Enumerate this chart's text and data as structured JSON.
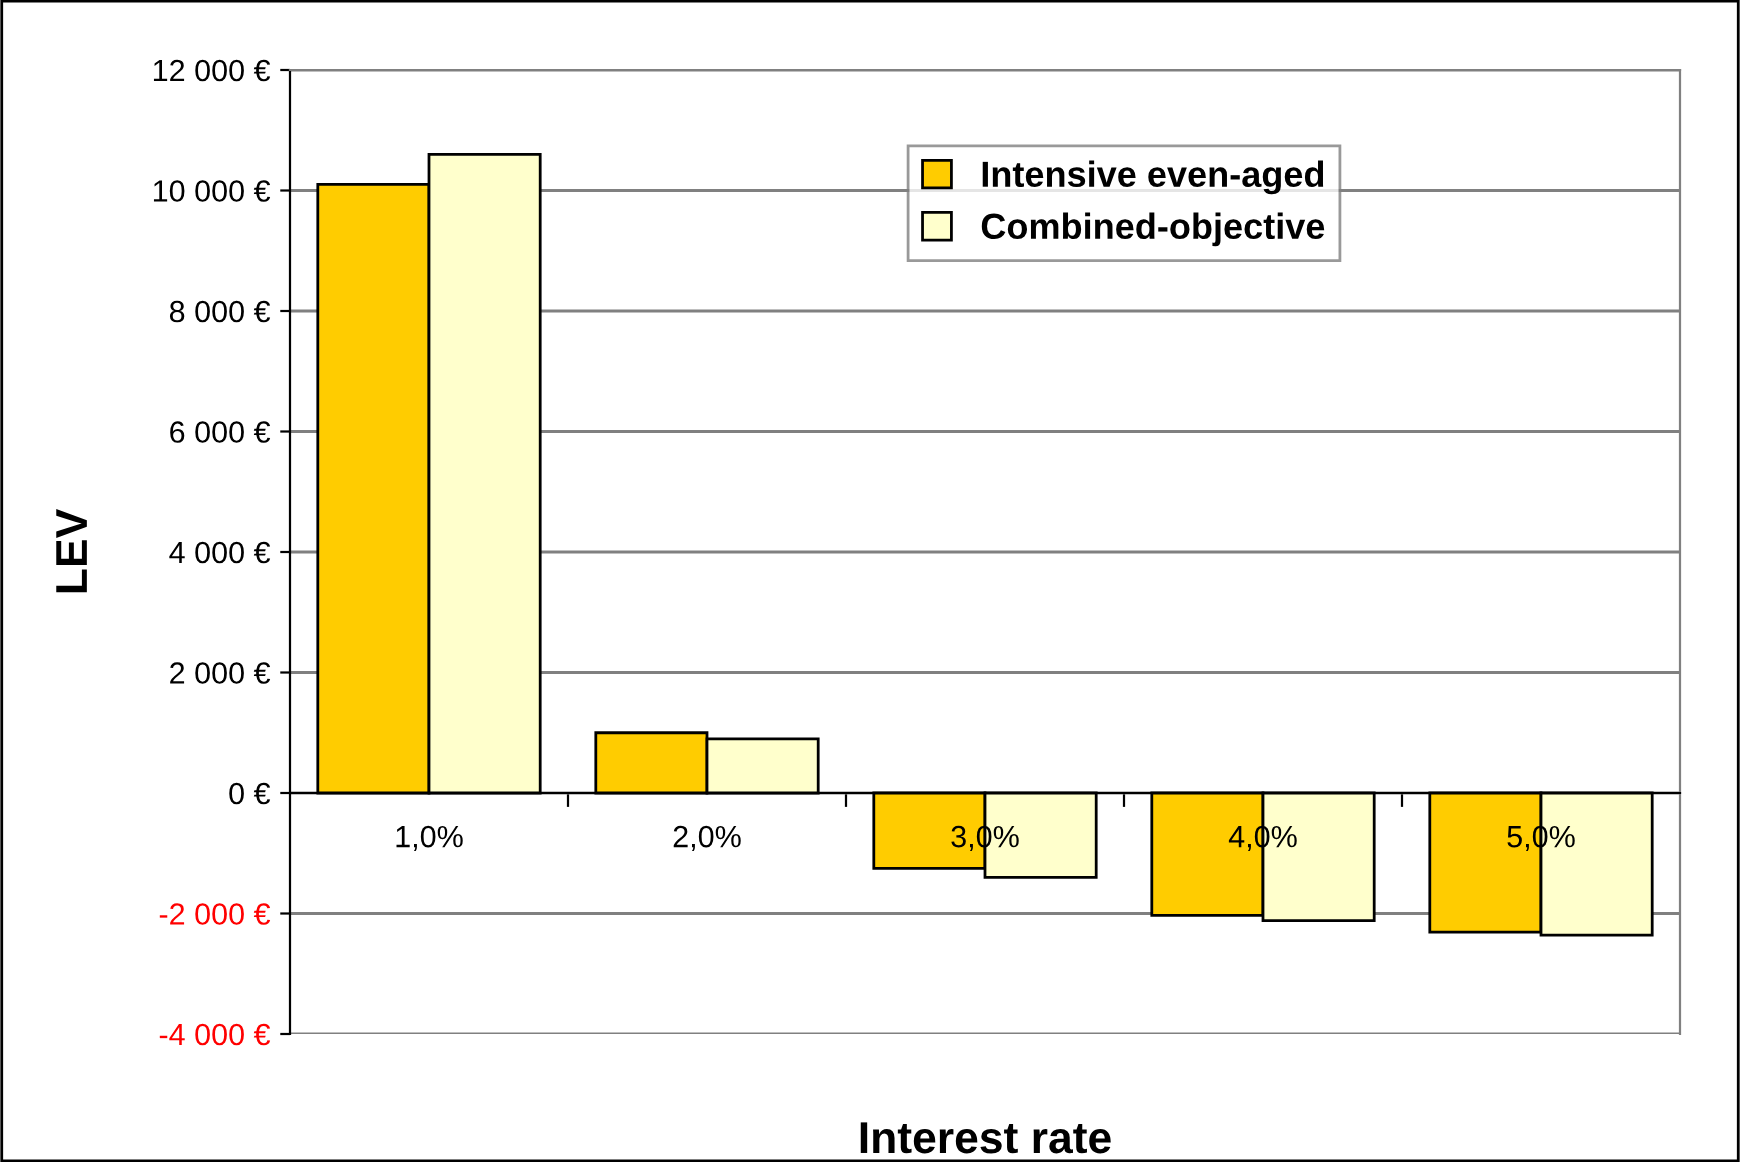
{
  "chart_data": {
    "type": "bar",
    "xlabel": "Interest rate",
    "ylabel": "LEV",
    "categories": [
      "1,0%",
      "2,0%",
      "3,0%",
      "4,0%",
      "5,0%"
    ],
    "series": [
      {
        "name": "Intensive even-aged",
        "color": "#ffcc00",
        "values": [
          10100,
          1000,
          -1250,
          -2030,
          -2310
        ]
      },
      {
        "name": "Combined-objective",
        "color": "#ffffcc",
        "values": [
          10600,
          900,
          -1400,
          -2120,
          -2360
        ]
      }
    ],
    "ylim": [
      -4000,
      12000
    ],
    "yticks": [
      {
        "value": -4000,
        "label": "-4 000 €"
      },
      {
        "value": -2000,
        "label": "-2 000 €"
      },
      {
        "value": 0,
        "label": "0 €"
      },
      {
        "value": 2000,
        "label": "2 000 €"
      },
      {
        "value": 4000,
        "label": "4 000 €"
      },
      {
        "value": 6000,
        "label": "6 000 €"
      },
      {
        "value": 8000,
        "label": "8 000 €"
      },
      {
        "value": 10000,
        "label": "10 000 €"
      },
      {
        "value": 12000,
        "label": "12 000 €"
      }
    ],
    "grid": "y",
    "legend": "top"
  }
}
